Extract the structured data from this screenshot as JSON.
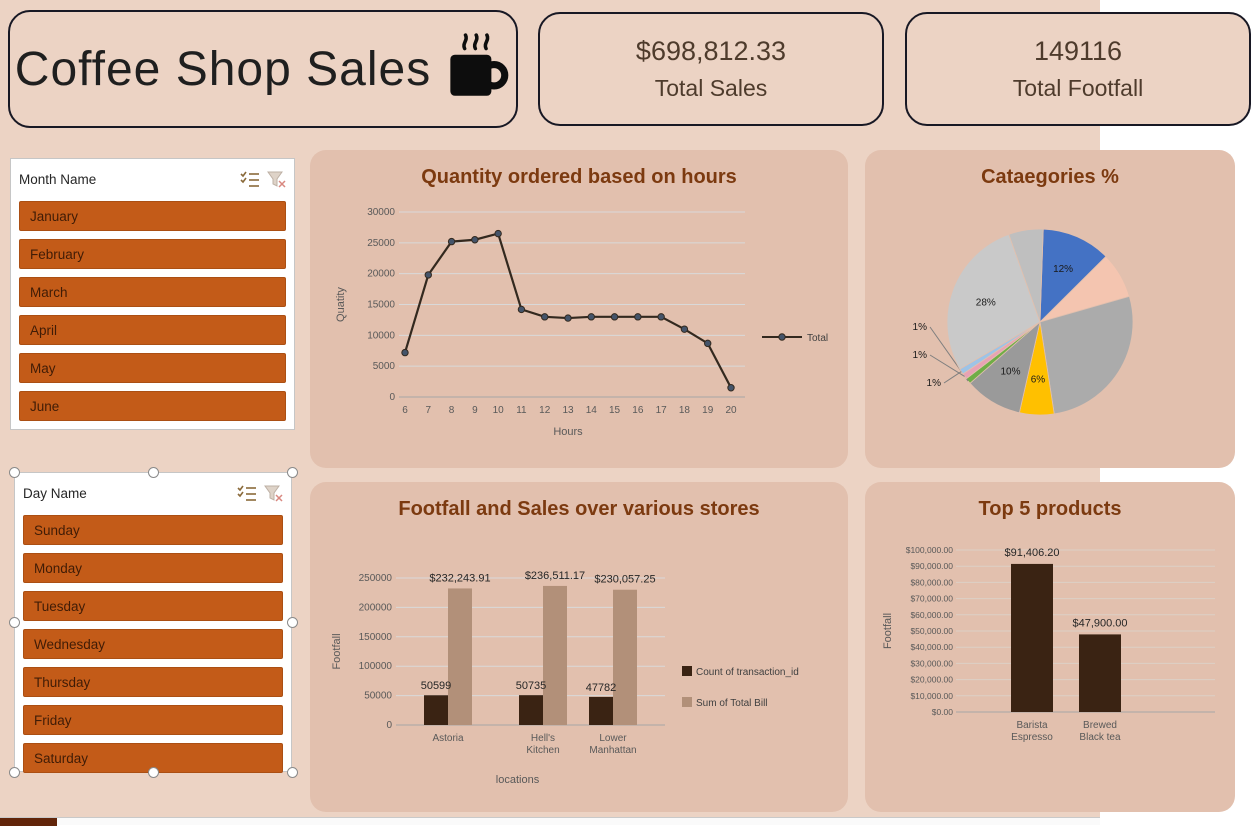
{
  "header": {
    "title": "Coffee Shop Sales",
    "kpis": [
      {
        "value": "$698,812.33",
        "label": "Total Sales"
      },
      {
        "value": "149116",
        "label": "Total Footfall"
      }
    ]
  },
  "slicers": {
    "month": {
      "title": "Month Name",
      "items": [
        "January",
        "February",
        "March",
        "April",
        "May",
        "June"
      ]
    },
    "day": {
      "title": "Day Name",
      "items": [
        "Sunday",
        "Monday",
        "Tuesday",
        "Wednesday",
        "Thursday",
        "Friday",
        "Saturday"
      ]
    }
  },
  "colors": {
    "background": "#ecd3c4",
    "card": "#e2c0ae",
    "kpi_border": "#181824",
    "slicer_accent": "#c35b18",
    "chart_title": "#7c3a10",
    "line": "#33291f",
    "marker": "#44546a",
    "bar_dark": "#3a2313",
    "bar_tan": "#b29079"
  },
  "chart_data": [
    {
      "type": "line",
      "title": "Quantity ordered based on hours",
      "x": [
        6,
        7,
        8,
        9,
        10,
        11,
        12,
        13,
        14,
        15,
        16,
        17,
        18,
        19,
        20
      ],
      "series": [
        {
          "name": "Total",
          "values": [
            7200,
            19800,
            25200,
            25500,
            26500,
            14200,
            13000,
            12800,
            13000,
            13000,
            13000,
            13000,
            11000,
            8700,
            1500
          ]
        }
      ],
      "xlabel": "Hours",
      "ylabel": "Quatity",
      "ylim": [
        0,
        30000
      ],
      "ytick": 5000,
      "legend_position": "right",
      "grid": true
    },
    {
      "type": "pie",
      "title": "Cataegories %",
      "slices": [
        {
          "label": "12%",
          "value": 12,
          "color": "#4472c4"
        },
        {
          "label": "",
          "value": 8,
          "color": "#f4c5b0"
        },
        {
          "label": "",
          "value": 27,
          "color": "#ababab"
        },
        {
          "label": "6%",
          "value": 6,
          "color": "#ffc000"
        },
        {
          "label": "10%",
          "value": 10,
          "color": "#9a9a9a"
        },
        {
          "label": "1%",
          "value": 1,
          "color": "#70ad47"
        },
        {
          "label": "1%",
          "value": 1,
          "color": "#e8a2b4"
        },
        {
          "label": "1%",
          "value": 1,
          "color": "#9dc3e6"
        },
        {
          "label": "28%",
          "value": 28,
          "color": "#c9c9c9"
        },
        {
          "label": "",
          "value": 6,
          "color": "#bfbfbf"
        }
      ]
    },
    {
      "type": "bar",
      "title": "Footfall and Sales over various stores",
      "categories": [
        "Astoria",
        "Hell's Kitchen",
        "Lower Manhattan"
      ],
      "series": [
        {
          "name": "Count of transaction_id",
          "color": "#3a2313",
          "values": [
            50599,
            50735,
            47782
          ],
          "labels": [
            "50599",
            "50735",
            "47782"
          ]
        },
        {
          "name": "Sum of Total Bill",
          "color": "#b29079",
          "values": [
            232243.91,
            236511.17,
            230057.25
          ],
          "labels": [
            "$232,243.91",
            "$236,511.17",
            "$230,057.25"
          ]
        }
      ],
      "xlabel": "locations",
      "ylabel": "Footfall",
      "ylim": [
        0,
        250000
      ],
      "ytick": 50000,
      "legend_position": "right",
      "grid": true
    },
    {
      "type": "bar",
      "title": "Top 5 products",
      "categories": [
        "Barista Espresso",
        "Brewed Black tea"
      ],
      "values": [
        91406.2,
        47900
      ],
      "labels": [
        "$91,406.20",
        "$47,900.00"
      ],
      "ylabel": "Footfall",
      "ylim": [
        0,
        100000
      ],
      "ytick": 10000,
      "bar_color": "#3a2313",
      "grid": true
    }
  ]
}
